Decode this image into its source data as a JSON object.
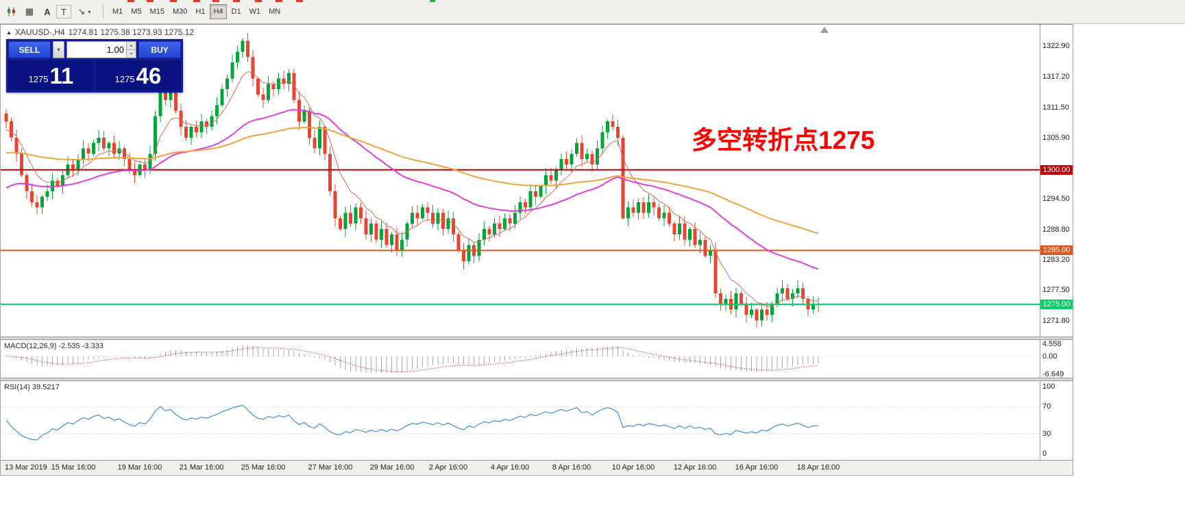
{
  "toolbar": {
    "timeframes": [
      "M1",
      "M5",
      "M15",
      "M30",
      "H1",
      "H4",
      "D1",
      "W1",
      "MN"
    ],
    "active_timeframe": "H4"
  },
  "icons": {
    "grid_glyph": "▦",
    "text_tool": "A",
    "label_tool": "T",
    "cursor_tool": "↘",
    "caret_down": "▾",
    "spin_up": "▴",
    "spin_down": "▾",
    "window_marker": "▲"
  },
  "chart": {
    "symbol_tf": "XAUUSD-,H4",
    "ohlc_text": "1274.81 1275.38 1273.93 1275.12"
  },
  "trade": {
    "sell_label": "SELL",
    "buy_label": "BUY",
    "volume": "1.00",
    "sell_small": "1275",
    "sell_big": "11",
    "buy_small": "1275",
    "buy_big": "46"
  },
  "chart_data": {
    "type": "candlestick",
    "symbol": "XAUUSD-",
    "timeframe": "H4",
    "ylim": [
      1269.5,
      1326.5
    ],
    "price_ticks": [
      "1322.90",
      "1317.20",
      "1311.50",
      "1305.90",
      "1294.50",
      "1288.80",
      "1283.20",
      "1277.50",
      "1271.80"
    ],
    "levels": [
      {
        "value": 1300.0,
        "label": "1300.00",
        "color": "#c00000"
      },
      {
        "value": 1285.0,
        "label": "1285.00",
        "color": "#df571d"
      },
      {
        "value": 1275.0,
        "label": "1275.00",
        "color": "#00cf63"
      }
    ],
    "annotation": {
      "text": "多空转折点1275",
      "color": "#ff0000"
    },
    "colors": {
      "up": "#00a437",
      "down": "#ea4330"
    },
    "candles": {
      "first_open": 1310.5,
      "closes": [
        1309,
        1306,
        1303,
        1299,
        1296,
        1294,
        1293,
        1295,
        1296,
        1298,
        1297,
        1299,
        1301,
        1300,
        1302,
        1304,
        1303,
        1305,
        1306,
        1304,
        1305,
        1303,
        1304,
        1302,
        1300,
        1299,
        1301,
        1300,
        1303,
        1310,
        1316,
        1313,
        1315,
        1311,
        1308,
        1306,
        1308,
        1307,
        1309,
        1308,
        1310,
        1312,
        1315,
        1317,
        1320,
        1322,
        1324,
        1321,
        1317,
        1314,
        1313,
        1316,
        1315,
        1317,
        1316,
        1318,
        1313,
        1309,
        1311,
        1306,
        1304,
        1308,
        1303,
        1296,
        1291,
        1289,
        1292,
        1290,
        1293,
        1291,
        1288,
        1290,
        1287,
        1289,
        1286,
        1288,
        1285,
        1287,
        1290,
        1292,
        1291,
        1293,
        1292,
        1290,
        1292,
        1289,
        1291,
        1288,
        1285,
        1283,
        1286,
        1284,
        1287,
        1289,
        1288,
        1290,
        1289,
        1291,
        1290,
        1292,
        1294,
        1293,
        1296,
        1295,
        1297,
        1299,
        1298,
        1300,
        1302,
        1301,
        1303,
        1305,
        1302,
        1303,
        1301,
        1304,
        1307,
        1309,
        1308,
        1306,
        1291,
        1293,
        1292,
        1294,
        1292,
        1294,
        1293,
        1291,
        1292,
        1290,
        1288,
        1290,
        1287,
        1289,
        1286,
        1287,
        1284,
        1285,
        1277,
        1275,
        1276,
        1274,
        1277,
        1275,
        1273,
        1274,
        1272,
        1274,
        1273,
        1275,
        1277,
        1278,
        1276,
        1277,
        1278,
        1276,
        1274,
        1275,
        1275.1
      ]
    },
    "moving_averages": [
      {
        "name": "fast-ma",
        "period": 8,
        "color": "#d06a55",
        "width": 1,
        "seed": 1307
      },
      {
        "name": "medium-ma",
        "period": 40,
        "color": "#e33ce0",
        "width": 2,
        "seed": 1296
      },
      {
        "name": "slow-ma",
        "period": 90,
        "color": "#f0a339",
        "width": 2,
        "seed": 1303
      }
    ],
    "time_ticks": [
      {
        "index": 0,
        "label": "13 Mar 2019"
      },
      {
        "index": 13,
        "label": "15 Mar 16:00"
      },
      {
        "index": 26,
        "label": "19 Mar 16:00"
      },
      {
        "index": 38,
        "label": "21 Mar 16:00"
      },
      {
        "index": 50,
        "label": "25 Mar 16:00"
      },
      {
        "index": 63,
        "label": "27 Mar 16:00"
      },
      {
        "index": 75,
        "label": "29 Mar 16:00"
      },
      {
        "index": 86,
        "label": "2 Apr 16:00"
      },
      {
        "index": 98,
        "label": "4 Apr 16:00"
      },
      {
        "index": 110,
        "label": "8 Apr 16:00"
      },
      {
        "index": 122,
        "label": "10 Apr 16:00"
      },
      {
        "index": 134,
        "label": "12 Apr 16:00"
      },
      {
        "index": 146,
        "label": "16 Apr 16:00"
      },
      {
        "index": 158,
        "label": "18 Apr 16:00"
      }
    ],
    "macd": {
      "label": "MACD(12,26,9) -2.535 -3.333",
      "fast": 12,
      "slow": 26,
      "signal": 9,
      "vmax": 4.558,
      "vmin": -6.649,
      "axis_ticks": [
        "4.558",
        "0.00",
        "-6.649"
      ]
    },
    "rsi": {
      "label": "RSI(14) 39.5217",
      "period": 14,
      "axis_ticks": [
        100,
        70,
        30,
        0
      ],
      "guide_levels": [
        70,
        30
      ]
    }
  }
}
